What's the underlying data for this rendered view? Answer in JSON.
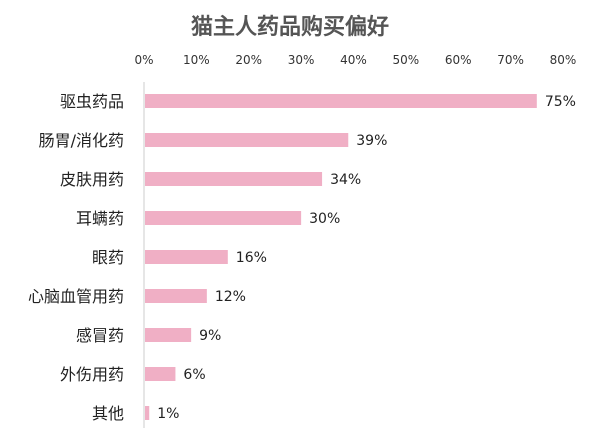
{
  "chart_data": {
    "type": "bar",
    "orientation": "horizontal",
    "title": "猫主人药品购买偏好",
    "categories": [
      "驱虫药品",
      "肠胃/消化药",
      "皮肤用药",
      "耳螨药",
      "眼药",
      "心脑血管用药",
      "感冒药",
      "外伤用药",
      "其他"
    ],
    "values": [
      75,
      39,
      34,
      30,
      16,
      12,
      9,
      6,
      1
    ],
    "value_labels": [
      "75%",
      "39%",
      "34%",
      "30%",
      "16%",
      "12%",
      "9%",
      "6%",
      "1%"
    ],
    "x_ticks": [
      "0%",
      "10%",
      "20%",
      "30%",
      "40%",
      "50%",
      "60%",
      "70%",
      "80%"
    ],
    "xlim": [
      0,
      80
    ],
    "x_axis_position": "top",
    "grid": false,
    "legend": "none",
    "bar_color": "#f0afc5",
    "axis_color": "#cccccc"
  }
}
